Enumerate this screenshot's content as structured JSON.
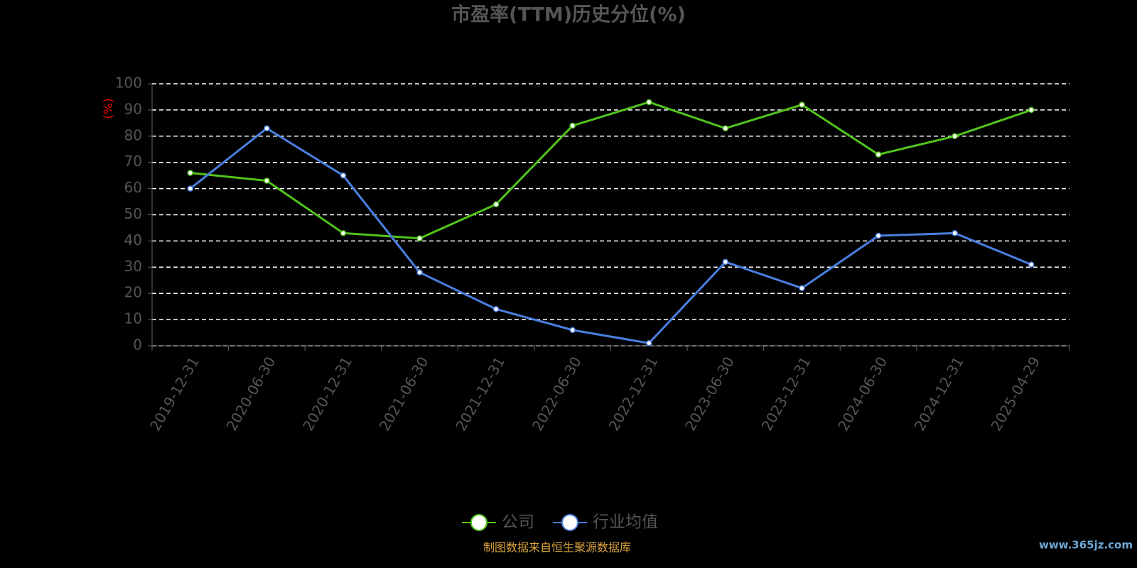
{
  "chart_data": {
    "type": "line",
    "title": "市盈率(TTM)历史分位(%)",
    "y_axis_label": "(%)",
    "categories": [
      "2019-12-31",
      "2020-06-30",
      "2020-12-31",
      "2021-06-30",
      "2021-12-31",
      "2022-06-30",
      "2022-12-31",
      "2023-06-30",
      "2023-12-31",
      "2024-06-30",
      "2024-12-31",
      "2025-04-29"
    ],
    "series": [
      {
        "name": "公司",
        "color": "#52c41a",
        "values": [
          66,
          63,
          43,
          41,
          54,
          84,
          93,
          83,
          92,
          73,
          80,
          90
        ]
      },
      {
        "name": "行业均值",
        "color": "#4a7fe0",
        "values": [
          60,
          83,
          65,
          28,
          14,
          6,
          1,
          32,
          22,
          42,
          43,
          31
        ]
      }
    ],
    "ylim": [
      0,
      100
    ],
    "yticks": [
      0,
      10,
      20,
      30,
      40,
      50,
      60,
      70,
      80,
      90,
      100
    ],
    "grid": true,
    "legend": "bottom",
    "source": "制图数据来自恒生聚源数据库",
    "watermark": "www.365jz.com"
  }
}
